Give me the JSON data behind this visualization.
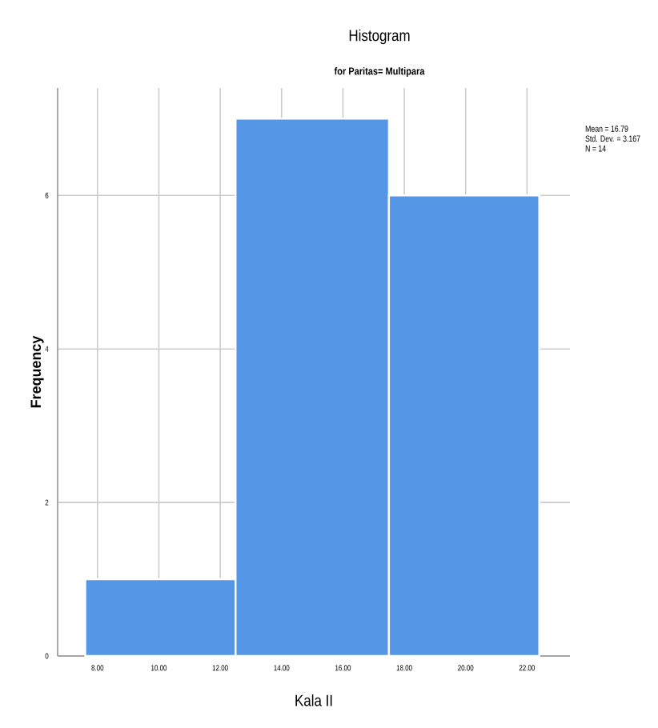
{
  "chart_data": {
    "type": "histogram",
    "title": "Histogram",
    "subtitle": "for Paritas= Multipara",
    "xlabel": "Kala II",
    "ylabel": "Frequency",
    "bins": [
      7.6,
      12.5,
      17.5,
      22.4
    ],
    "values": [
      1,
      7,
      6
    ],
    "color": "#5596e6",
    "xlim": [
      6.7,
      23.4
    ],
    "ylim": [
      0,
      7.4
    ],
    "xticks": [
      {
        "value": 8,
        "label": "8.00"
      },
      {
        "value": 10,
        "label": "10.00"
      },
      {
        "value": 12,
        "label": "12.00"
      },
      {
        "value": 14,
        "label": "14.00"
      },
      {
        "value": 16,
        "label": "16.00"
      },
      {
        "value": 18,
        "label": "18.00"
      },
      {
        "value": 20,
        "label": "20.00"
      },
      {
        "value": 22,
        "label": "22.00"
      }
    ],
    "yticks": [
      0,
      2,
      4,
      6
    ],
    "grid": true,
    "annotations": [
      "Mean = 16.79",
      "Std. Dev. = 3.167",
      "N = 14"
    ]
  }
}
